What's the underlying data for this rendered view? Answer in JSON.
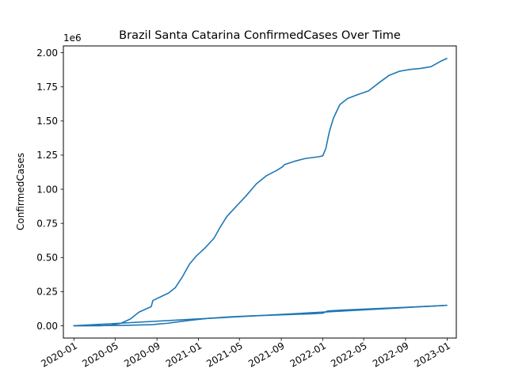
{
  "chart_data": {
    "type": "line",
    "title": "Brazil Santa Catarina ConfirmedCases Over Time",
    "xlabel": "",
    "ylabel": "ConfirmedCases",
    "y_offset_label": "1e6",
    "y_scale": 1000000,
    "xlim": [
      "2019-12-01",
      "2023-01-28"
    ],
    "ylim": [
      -90000,
      2050000
    ],
    "x_ticks": [
      {
        "date": "2020-01-01",
        "label": "2020-01"
      },
      {
        "date": "2020-05-01",
        "label": "2020-05"
      },
      {
        "date": "2020-09-01",
        "label": "2020-09"
      },
      {
        "date": "2021-01-01",
        "label": "2021-01"
      },
      {
        "date": "2021-05-01",
        "label": "2021-05"
      },
      {
        "date": "2021-09-01",
        "label": "2021-09"
      },
      {
        "date": "2022-01-01",
        "label": "2022-01"
      },
      {
        "date": "2022-05-01",
        "label": "2022-05"
      },
      {
        "date": "2022-09-01",
        "label": "2022-09"
      },
      {
        "date": "2023-01-01",
        "label": "2023-01"
      }
    ],
    "y_ticks": [
      {
        "value": 0,
        "label": "0.00"
      },
      {
        "value": 250000,
        "label": "0.25"
      },
      {
        "value": 500000,
        "label": "0.50"
      },
      {
        "value": 750000,
        "label": "0.75"
      },
      {
        "value": 1000000,
        "label": "1.00"
      },
      {
        "value": 1250000,
        "label": "1.25"
      },
      {
        "value": 1500000,
        "label": "1.50"
      },
      {
        "value": 1750000,
        "label": "1.75"
      },
      {
        "value": 2000000,
        "label": "2.00"
      }
    ],
    "grid": false,
    "legend": "none",
    "line_color": "#1f77b4",
    "series": [
      {
        "segments": [
          [
            [
              "2020-01-01",
              0
            ],
            [
              "2020-02-15",
              0
            ],
            [
              "2020-03-20",
              500
            ],
            [
              "2020-04-20",
              5000
            ],
            [
              "2020-05-20",
              20000
            ],
            [
              "2020-06-15",
              50000
            ],
            [
              "2020-07-10",
              100000
            ],
            [
              "2020-08-15",
              140000
            ],
            [
              "2020-08-20",
              185000
            ],
            [
              "2020-09-10",
              210000
            ],
            [
              "2020-10-05",
              240000
            ],
            [
              "2020-10-25",
              280000
            ],
            [
              "2020-11-15",
              360000
            ],
            [
              "2020-12-05",
              450000
            ],
            [
              "2020-12-25",
              510000
            ],
            [
              "2021-01-20",
              570000
            ],
            [
              "2021-02-15",
              640000
            ],
            [
              "2021-03-05",
              720000
            ],
            [
              "2021-03-25",
              800000
            ],
            [
              "2021-04-20",
              870000
            ],
            [
              "2021-05-20",
              950000
            ],
            [
              "2021-06-20",
              1040000
            ],
            [
              "2021-07-20",
              1100000
            ],
            [
              "2021-08-20",
              1140000
            ],
            [
              "2021-09-05",
              1165000
            ],
            [
              "2021-09-10",
              1180000
            ],
            [
              "2021-10-10",
              1205000
            ],
            [
              "2021-11-10",
              1225000
            ],
            [
              "2021-12-20",
              1238000
            ],
            [
              "2022-01-01",
              1245000
            ],
            [
              "2022-01-10",
              1300000
            ],
            [
              "2022-01-20",
              1420000
            ],
            [
              "2022-02-01",
              1520000
            ],
            [
              "2022-02-20",
              1620000
            ],
            [
              "2022-03-15",
              1665000
            ],
            [
              "2022-04-15",
              1695000
            ],
            [
              "2022-05-15",
              1720000
            ],
            [
              "2022-06-15",
              1780000
            ],
            [
              "2022-07-15",
              1835000
            ],
            [
              "2022-08-15",
              1865000
            ],
            [
              "2022-09-15",
              1878000
            ],
            [
              "2022-10-15",
              1885000
            ],
            [
              "2022-11-15",
              1898000
            ],
            [
              "2022-12-15",
              1940000
            ],
            [
              "2022-12-31",
              1958000
            ]
          ],
          [
            [
              "2022-12-31",
              150000
            ],
            [
              "2020-01-01",
              0
            ]
          ],
          [
            [
              "2020-01-01",
              0
            ],
            [
              "2020-06-01",
              3000
            ],
            [
              "2020-08-20",
              8000
            ],
            [
              "2020-09-01",
              12000
            ],
            [
              "2020-10-01",
              18000
            ],
            [
              "2020-12-01",
              38000
            ],
            [
              "2021-02-01",
              55000
            ],
            [
              "2021-04-01",
              65000
            ],
            [
              "2021-06-01",
              72000
            ],
            [
              "2021-09-01",
              80000
            ],
            [
              "2021-12-01",
              88000
            ],
            [
              "2022-01-01",
              92000
            ],
            [
              "2022-01-15",
              108000
            ],
            [
              "2022-03-01",
              115000
            ],
            [
              "2022-06-01",
              125000
            ],
            [
              "2022-09-01",
              135000
            ],
            [
              "2022-12-01",
              145000
            ],
            [
              "2022-12-31",
              150000
            ]
          ]
        ]
      }
    ]
  }
}
